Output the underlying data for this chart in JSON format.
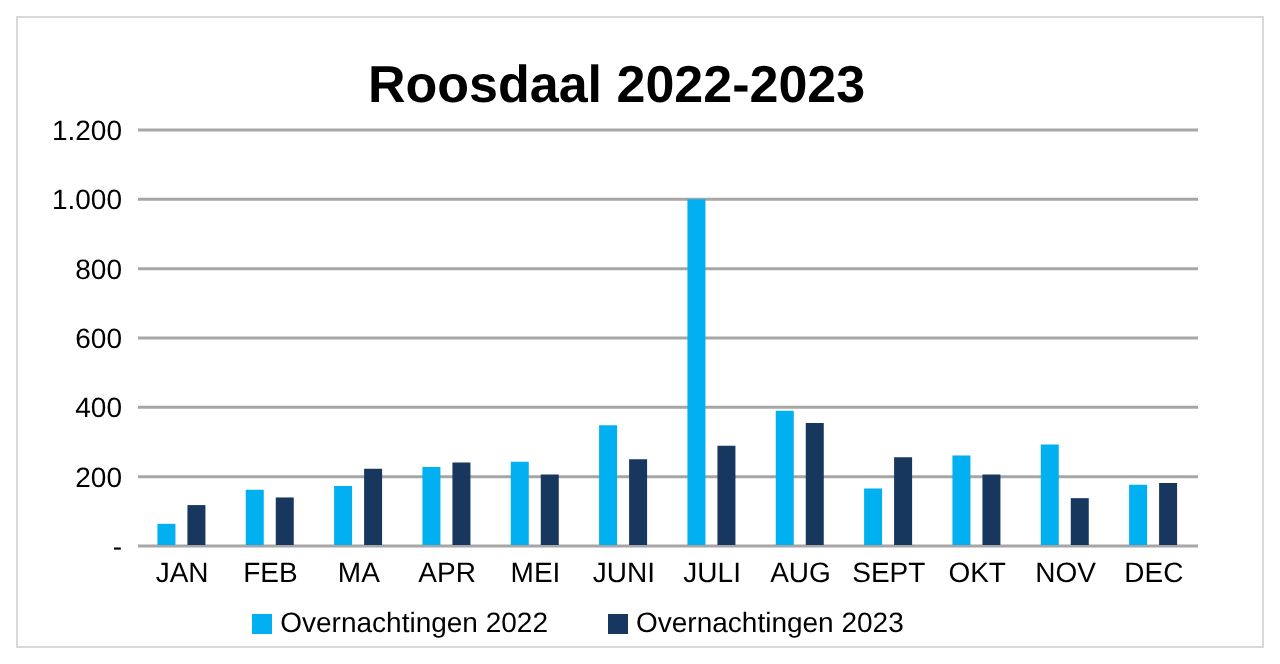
{
  "chart_data": {
    "type": "bar",
    "title": "Roosdaal 2022-2023",
    "categories": [
      "JAN",
      "FEB",
      "MA",
      "APR",
      "MEI",
      "JUNI",
      "JULI",
      "AUG",
      "SEPT",
      "OKT",
      "NOV",
      "DEC"
    ],
    "series": [
      {
        "name": "Overnachtingen 2022",
        "color": "#00b0f0",
        "values": [
          64,
          162,
          173,
          228,
          243,
          348,
          1000,
          390,
          166,
          261,
          293,
          177
        ]
      },
      {
        "name": "Overnachtingen 2023",
        "color": "#17375e",
        "values": [
          118,
          140,
          223,
          241,
          206,
          250,
          289,
          355,
          256,
          206,
          138,
          182
        ]
      }
    ],
    "ylim": [
      0,
      1200
    ],
    "yticks": [
      {
        "value": 0,
        "label": "-"
      },
      {
        "value": 200,
        "label": "200"
      },
      {
        "value": 400,
        "label": "400"
      },
      {
        "value": 600,
        "label": "600"
      },
      {
        "value": 800,
        "label": "800"
      },
      {
        "value": 1000,
        "label": "1.000"
      },
      {
        "value": 1200,
        "label": "1.200"
      }
    ],
    "grid": "y",
    "legend": "bottom"
  }
}
